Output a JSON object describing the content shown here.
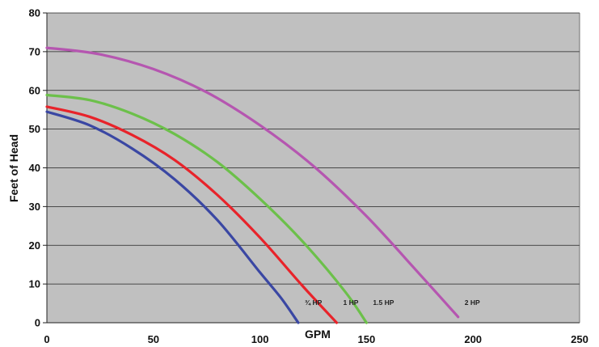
{
  "chart_data": {
    "type": "line",
    "title": "",
    "xlabel": "GPM",
    "ylabel": "Feet of Head",
    "xlim": [
      0,
      250
    ],
    "ylim": [
      0,
      80
    ],
    "x_ticks": [
      "0",
      "50",
      "100",
      "150",
      "200",
      "250"
    ],
    "y_ticks": [
      "0",
      "10",
      "20",
      "30",
      "40",
      "50",
      "60",
      "70",
      "80"
    ],
    "grid": "horizontal",
    "plot_background": "#c0c0c0",
    "series": [
      {
        "name": "¾ HP",
        "color": "#3a47a3",
        "x": [
          0,
          20,
          40,
          60,
          80,
          100,
          110,
          118
        ],
        "y": [
          54.5,
          51,
          45,
          37,
          26.5,
          13,
          6.3,
          0
        ]
      },
      {
        "name": "1 HP",
        "color": "#e8232a",
        "x": [
          0,
          20,
          40,
          60,
          80,
          100,
          120,
          136
        ],
        "y": [
          55.8,
          53.2,
          48.5,
          42,
          33,
          22,
          9.5,
          0
        ]
      },
      {
        "name": "1.5 HP",
        "color": "#6cc04a",
        "x": [
          0,
          20,
          40,
          60,
          80,
          100,
          120,
          140,
          150
        ],
        "y": [
          58.8,
          57.5,
          54,
          48.7,
          41.5,
          32,
          21,
          8,
          0
        ]
      },
      {
        "name": "2 HP",
        "color": "#b556b0",
        "x": [
          0,
          25,
          50,
          75,
          100,
          125,
          150,
          175,
          193
        ],
        "y": [
          71,
          69.3,
          65.5,
          59.5,
          51,
          40.5,
          27.5,
          12.5,
          1.5
        ]
      }
    ]
  }
}
